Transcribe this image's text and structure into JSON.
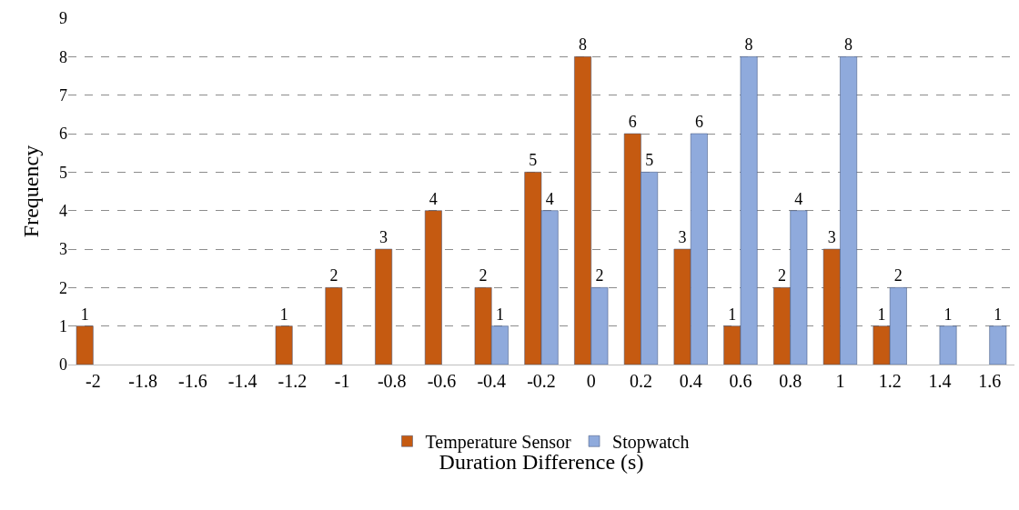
{
  "chart_data": {
    "type": "bar",
    "xlabel": "Duration Difference (s)",
    "ylabel": "Frequency",
    "categories": [
      "-2",
      "-1.8",
      "-1.6",
      "-1.4",
      "-1.2",
      "-1",
      "-0.8",
      "-0.6",
      "-0.4",
      "-0.2",
      "0",
      "0.2",
      "0.4",
      "0.6",
      "0.8",
      "1",
      "1.2",
      "1.4",
      "1.6"
    ],
    "series": [
      {
        "name": "Temperature Sensor",
        "color": "#c55a11",
        "values": [
          1,
          null,
          null,
          null,
          1,
          2,
          3,
          4,
          2,
          5,
          8,
          6,
          3,
          1,
          2,
          3,
          1,
          null,
          null
        ]
      },
      {
        "name": "Stopwatch",
        "color": "#8faadc",
        "values": [
          null,
          null,
          null,
          null,
          null,
          null,
          null,
          null,
          1,
          4,
          2,
          5,
          6,
          8,
          4,
          8,
          2,
          1,
          1
        ]
      }
    ],
    "ylim": [
      0,
      9
    ],
    "yticks": [
      0,
      1,
      2,
      3,
      4,
      5,
      6,
      7,
      8,
      9
    ],
    "grid": "y",
    "legend": "bottom",
    "data_labels": true
  }
}
